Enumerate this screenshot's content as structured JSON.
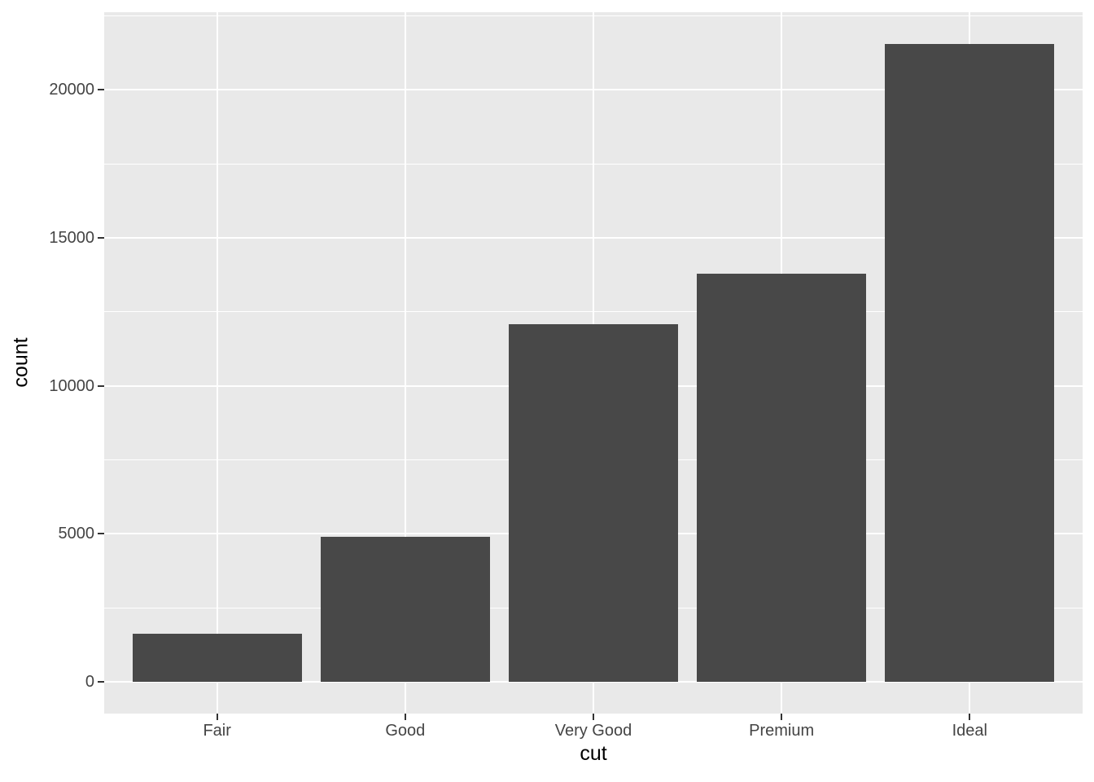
{
  "chart_data": {
    "type": "bar",
    "xlabel": "cut",
    "ylabel": "count",
    "categories": [
      "Fair",
      "Good",
      "Very Good",
      "Premium",
      "Ideal"
    ],
    "values": [
      1610,
      4906,
      12082,
      13791,
      21551
    ],
    "ylim": [
      0,
      21551
    ],
    "panel_range": [
      -1078,
      22629
    ],
    "y_major_ticks": [
      0,
      5000,
      10000,
      15000,
      20000
    ],
    "y_minor_ticks": [
      2500,
      7500,
      12500,
      17500,
      22500
    ],
    "grid": true,
    "legend": "none",
    "bar_rel_width": 0.9,
    "x_expand": 0.6,
    "style": {
      "bar_fill": "#484848",
      "panel_bg": "#E9E9E9",
      "grid_color": "#FFFFFF",
      "tick_mark_color": "#333333",
      "tick_label_color": "#444444",
      "axis_title_color": "#000000",
      "figure_bg": "#FFFFFF"
    }
  }
}
